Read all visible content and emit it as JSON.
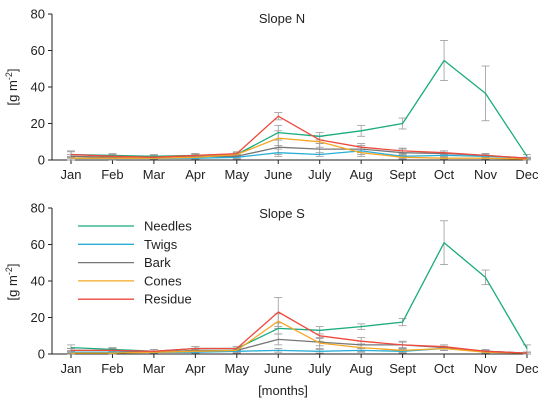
{
  "figure": {
    "xlabel": "[months]"
  },
  "chart_data": [
    {
      "type": "line",
      "title": "Slope N",
      "ylabel": "[g m-2]",
      "xlabel": "",
      "ylim": [
        0,
        80
      ],
      "yticks": [
        0,
        20,
        40,
        60,
        80
      ],
      "categories": [
        "Jan",
        "Feb",
        "Mar",
        "Apr",
        "May",
        "June",
        "July",
        "Aug",
        "Sept",
        "Oct",
        "Nov",
        "Dec"
      ],
      "grid": false,
      "series": [
        {
          "name": "Needles",
          "color": "#1aab7f",
          "values": [
            3,
            2.5,
            2,
            2.5,
            3,
            15,
            13,
            16,
            20,
            54.5,
            36.5,
            2
          ],
          "err": [
            2,
            1,
            1,
            1,
            1,
            4,
            2,
            3,
            3,
            11,
            15,
            1
          ]
        },
        {
          "name": "Twigs",
          "color": "#2aaed6",
          "values": [
            1,
            1,
            1,
            1,
            1.5,
            4,
            3,
            5,
            2,
            2.5,
            2,
            1
          ],
          "err": [
            1,
            1,
            0.5,
            0.5,
            1,
            2,
            1,
            2,
            1,
            1,
            1,
            0.5
          ]
        },
        {
          "name": "Bark",
          "color": "#777777",
          "values": [
            2,
            1.5,
            1.5,
            2,
            2,
            7,
            6,
            6,
            4,
            3.5,
            2.5,
            1
          ],
          "err": [
            1,
            1,
            0.5,
            1,
            1,
            4,
            3,
            2,
            2,
            1.5,
            1,
            0.5
          ]
        },
        {
          "name": "Cones",
          "color": "#f5a623",
          "values": [
            1,
            1,
            1,
            1.5,
            3,
            12,
            10,
            4,
            1.5,
            1,
            1,
            0.5
          ],
          "err": [
            1,
            0.5,
            0.5,
            1,
            1,
            4,
            3,
            2,
            1,
            0.5,
            0.5,
            0.5
          ]
        },
        {
          "name": "Residue",
          "color": "#ef4a3e",
          "values": [
            3,
            2,
            1.5,
            2.5,
            3.5,
            24,
            11,
            7,
            5,
            4,
            2.5,
            1
          ],
          "err": [
            1.5,
            1,
            1,
            1,
            1,
            2,
            2,
            2,
            1.5,
            1,
            1,
            0.5
          ]
        }
      ]
    },
    {
      "type": "line",
      "title": "Slope S",
      "ylabel": "[g m-2]",
      "xlabel": "[months]",
      "ylim": [
        0,
        80
      ],
      "yticks": [
        0,
        20,
        40,
        60,
        80
      ],
      "categories": [
        "Jan",
        "Feb",
        "Mar",
        "Apr",
        "May",
        "June",
        "July",
        "Aug",
        "Sept",
        "Oct",
        "Nov",
        "Dec"
      ],
      "grid": false,
      "legend": "top-left",
      "series": [
        {
          "name": "Needles",
          "color": "#1aab7f",
          "values": [
            3.5,
            2.5,
            1.5,
            3,
            3,
            14,
            13,
            15,
            17.5,
            61,
            42,
            3
          ],
          "err": [
            1.5,
            1,
            1,
            1,
            1,
            3,
            2,
            1.5,
            2,
            12,
            4,
            2
          ]
        },
        {
          "name": "Twigs",
          "color": "#2aaed6",
          "values": [
            1,
            1,
            1,
            1,
            1.5,
            2,
            1.5,
            2,
            1.5,
            3,
            1.5,
            0.5
          ],
          "err": [
            0.5,
            0.5,
            0.5,
            0.5,
            1,
            1,
            1,
            1,
            1,
            1,
            0.5,
            0.5
          ]
        },
        {
          "name": "Bark",
          "color": "#777777",
          "values": [
            2,
            2,
            1,
            2,
            2,
            8,
            6.5,
            5,
            5,
            3.5,
            1.5,
            0.5
          ],
          "err": [
            1,
            1,
            0.5,
            1,
            1,
            3,
            2,
            2,
            2,
            1.5,
            1,
            0.5
          ]
        },
        {
          "name": "Cones",
          "color": "#f5a623",
          "values": [
            0.5,
            0.5,
            1,
            1.5,
            2,
            18,
            6,
            3.5,
            2,
            3,
            1,
            0.5
          ],
          "err": [
            0.5,
            0.5,
            0.5,
            1,
            1,
            4,
            3,
            2,
            1,
            1,
            0.5,
            0.5
          ]
        },
        {
          "name": "Residue",
          "color": "#ef4a3e",
          "values": [
            2,
            2,
            1.5,
            3,
            3,
            23,
            10,
            7,
            5,
            4,
            1.5,
            0.5
          ],
          "err": [
            1,
            1,
            1,
            1,
            1,
            8,
            3,
            2,
            1.5,
            1,
            0.5,
            0.5
          ]
        }
      ]
    }
  ]
}
